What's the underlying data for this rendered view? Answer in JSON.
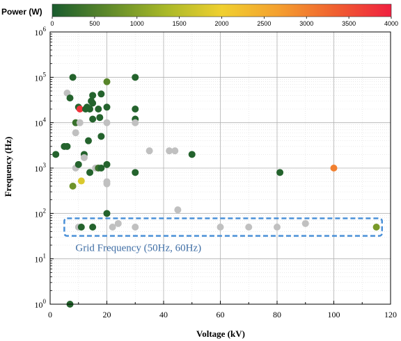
{
  "chart_data": {
    "type": "scatter",
    "xlabel": "Voltage (kV)",
    "ylabel": "Frequency (Hz)",
    "xlim": [
      0,
      120
    ],
    "ylim": [
      1,
      1000000
    ],
    "y_scale": "log",
    "grid": true,
    "x_ticks": [
      "0",
      "20",
      "40",
      "60",
      "80",
      "100",
      "120"
    ],
    "y_ticks": [
      {
        "base": "10",
        "exp": "0"
      },
      {
        "base": "10",
        "exp": "1"
      },
      {
        "base": "10",
        "exp": "2"
      },
      {
        "base": "10",
        "exp": "3"
      },
      {
        "base": "10",
        "exp": "4"
      },
      {
        "base": "10",
        "exp": "5"
      },
      {
        "base": "10",
        "exp": "6"
      }
    ],
    "colorbar": {
      "title": "Power (W)",
      "min": 0,
      "max": 4000,
      "ticks": [
        "0",
        "500",
        "1000",
        "1500",
        "2000",
        "2500",
        "3000",
        "3500",
        "4000"
      ],
      "colors": [
        "#1a5c2e",
        "#5f8a2a",
        "#a8b828",
        "#f0d030",
        "#f4a030",
        "#f06030",
        "#f02040"
      ]
    },
    "unknown_power_color": "#c0c0c0",
    "annotation": {
      "text": "Grid Frequency (50Hz, 60Hz)",
      "x_range": [
        5,
        117
      ],
      "y_range": [
        32,
        78
      ]
    },
    "points": [
      {
        "x": 7,
        "y": 1,
        "power": 100
      },
      {
        "x": 2,
        "y": 2000,
        "power": 100
      },
      {
        "x": 5,
        "y": 3000,
        "power": 100
      },
      {
        "x": 6,
        "y": 3000,
        "power": 100
      },
      {
        "x": 6,
        "y": 45000,
        "power": null
      },
      {
        "x": 7,
        "y": 35000,
        "power": 100
      },
      {
        "x": 8,
        "y": 100000,
        "power": 100
      },
      {
        "x": 8,
        "y": 400,
        "power": 800
      },
      {
        "x": 9,
        "y": 6000,
        "power": null
      },
      {
        "x": 9,
        "y": 10000,
        "power": 300
      },
      {
        "x": 9,
        "y": 1000,
        "power": null
      },
      {
        "x": 10,
        "y": 22000,
        "power": 100
      },
      {
        "x": 10,
        "y": 1200,
        "power": 100
      },
      {
        "x": 10,
        "y": 50,
        "power": null
      },
      {
        "x": 10.5,
        "y": 20000,
        "power": 3800
      },
      {
        "x": 10.5,
        "y": 10000,
        "power": null
      },
      {
        "x": 11,
        "y": 520,
        "power": 1800
      },
      {
        "x": 11,
        "y": 50,
        "power": 100
      },
      {
        "x": 12,
        "y": 2000,
        "power": 100
      },
      {
        "x": 12,
        "y": 1700,
        "power": null
      },
      {
        "x": 12.5,
        "y": 20000,
        "power": 100
      },
      {
        "x": 13,
        "y": 22000,
        "power": 100
      },
      {
        "x": 13.5,
        "y": 4000,
        "power": 100
      },
      {
        "x": 14,
        "y": 20000,
        "power": 100
      },
      {
        "x": 14,
        "y": 800,
        "power": 100
      },
      {
        "x": 14.5,
        "y": 30000,
        "power": 100
      },
      {
        "x": 15,
        "y": 40000,
        "power": 100
      },
      {
        "x": 15,
        "y": 27000,
        "power": 100
      },
      {
        "x": 15,
        "y": 12000,
        "power": 100
      },
      {
        "x": 15,
        "y": 50,
        "power": 100
      },
      {
        "x": 16,
        "y": 1000,
        "power": null
      },
      {
        "x": 17,
        "y": 20000,
        "power": 100
      },
      {
        "x": 17,
        "y": 1000,
        "power": 300
      },
      {
        "x": 17.5,
        "y": 13000,
        "power": 100
      },
      {
        "x": 18,
        "y": 43000,
        "power": 100
      },
      {
        "x": 18,
        "y": 5000,
        "power": 100
      },
      {
        "x": 18,
        "y": 1000,
        "power": 100
      },
      {
        "x": 20,
        "y": 80000,
        "power": 600
      },
      {
        "x": 20,
        "y": 22000,
        "power": 100
      },
      {
        "x": 20,
        "y": 10000,
        "power": null
      },
      {
        "x": 20,
        "y": 1200,
        "power": 100
      },
      {
        "x": 20,
        "y": 500,
        "power": null
      },
      {
        "x": 20,
        "y": 450,
        "power": null
      },
      {
        "x": 20,
        "y": 100,
        "power": 100
      },
      {
        "x": 22,
        "y": 50,
        "power": null
      },
      {
        "x": 24,
        "y": 60,
        "power": null
      },
      {
        "x": 30,
        "y": 100000,
        "power": 100
      },
      {
        "x": 30,
        "y": 20000,
        "power": 100
      },
      {
        "x": 30,
        "y": 12000,
        "power": 100
      },
      {
        "x": 30,
        "y": 10000,
        "power": null
      },
      {
        "x": 30,
        "y": 800,
        "power": 100
      },
      {
        "x": 30,
        "y": 50,
        "power": null
      },
      {
        "x": 35,
        "y": 2400,
        "power": null
      },
      {
        "x": 42,
        "y": 2400,
        "power": null
      },
      {
        "x": 44,
        "y": 2400,
        "power": null
      },
      {
        "x": 45,
        "y": 120,
        "power": null
      },
      {
        "x": 50,
        "y": 2000,
        "power": 100
      },
      {
        "x": 60,
        "y": 50,
        "power": null
      },
      {
        "x": 70,
        "y": 50,
        "power": null
      },
      {
        "x": 80,
        "y": 50,
        "power": null
      },
      {
        "x": 81,
        "y": 800,
        "power": 100
      },
      {
        "x": 90,
        "y": 60,
        "power": null
      },
      {
        "x": 100,
        "y": 1000,
        "power": 3000
      },
      {
        "x": 115,
        "y": 50,
        "power": 900
      }
    ]
  }
}
